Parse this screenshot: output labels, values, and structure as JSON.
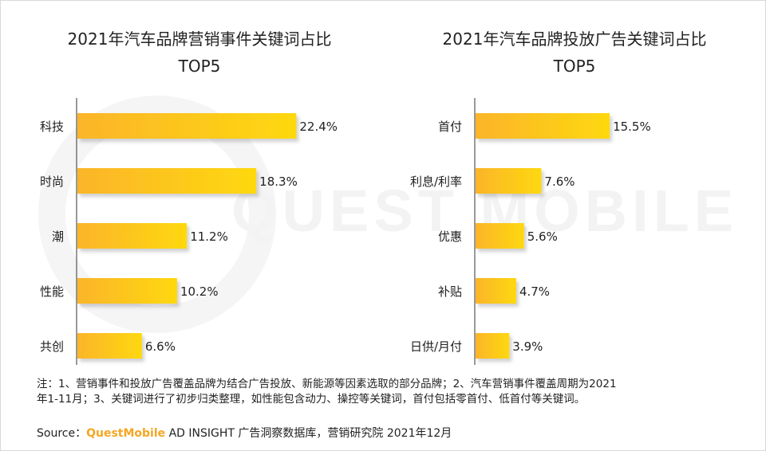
{
  "watermark": "QUEST MOBILE",
  "chart_data": [
    {
      "type": "bar",
      "orientation": "horizontal",
      "title": "2021年汽车品牌营销事件关键词占比",
      "subtitle": "TOP5",
      "categories": [
        "科技",
        "时尚",
        "潮",
        "性能",
        "共创"
      ],
      "values": [
        22.4,
        18.3,
        11.2,
        10.2,
        6.6
      ],
      "value_labels": [
        "22.4%",
        "18.3%",
        "11.2%",
        "10.2%",
        "6.6%"
      ],
      "unit": "%",
      "xlim": [
        0,
        24
      ],
      "grid": false,
      "color": "#fcc21b"
    },
    {
      "type": "bar",
      "orientation": "horizontal",
      "title": "2021年汽车品牌投放广告关键词占比",
      "subtitle": "TOP5",
      "categories": [
        "首付",
        "利息/利率",
        "优惠",
        "补贴",
        "日供/月付"
      ],
      "values": [
        15.5,
        7.6,
        5.6,
        4.7,
        3.9
      ],
      "value_labels": [
        "15.5%",
        "7.6%",
        "5.6%",
        "4.7%",
        "3.9%"
      ],
      "unit": "%",
      "xlim": [
        0,
        16.6
      ],
      "grid": false,
      "color": "#fcc21b"
    }
  ],
  "note": {
    "line1": "注：1、营销事件和投放广告覆盖品牌为结合广告投放、新能源等因素选取的部分品牌；2、汽车营销事件覆盖周期为2021",
    "line2": "年1-11月；3、关键词进行了初步归类整理，如性能包含动力、操控等关键词，首付包括零首付、低首付等关键词。"
  },
  "source": {
    "prefix": "Source：",
    "brand": "QuestMobile",
    "rest": " AD INSIGHT 广告洞察数据库，营销研究院 2021年12月"
  }
}
